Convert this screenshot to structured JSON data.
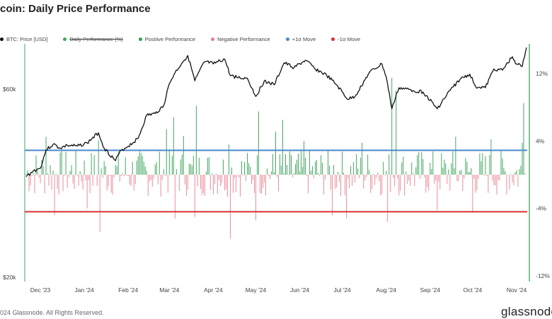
{
  "header": {
    "title": "coin: Daily Price Performance"
  },
  "legend": [
    {
      "label": "BTC: Price [USD]",
      "color": "#111111",
      "strike": false
    },
    {
      "label": "Daily Performance (%)",
      "color": "#3aa860",
      "strike": true
    },
    {
      "label": "Positive Performance",
      "color": "#2f9e4f",
      "strike": false
    },
    {
      "label": "Negative Performance",
      "color": "#e8808e",
      "strike": false
    },
    {
      "label": "+1σ Move",
      "color": "#4a87d0",
      "strike": false
    },
    {
      "label": "-1σ Move",
      "color": "#d93030",
      "strike": false
    }
  ],
  "footer": {
    "copyright": "024 Glassnode. All Rights Reserved.",
    "brand": "glassnode"
  },
  "colors": {
    "price": "#111111",
    "positive": "#2f9e4f",
    "negative": "#e8808e",
    "plus_sigma": "#4a87d0",
    "minus_sigma": "#d93030",
    "left_axis_line": "#3aa860",
    "right_axis_line": "#2f9e4f"
  },
  "chart_data": {
    "type": "line",
    "title": "coin: Daily Price Performance",
    "x_tick_labels": [
      "Dec '23",
      "Jan '24",
      "Feb '24",
      "Mar '24",
      "Apr '24",
      "May '24",
      "Jun '24",
      "Jul '24",
      "Aug '24",
      "Sep '24",
      "Oct '24",
      "Nov '24"
    ],
    "left_axis": {
      "scale": "log",
      "ticks": [
        {
          "label": "$60k",
          "value": 60000
        },
        {
          "label": "$20k",
          "value": 20000
        }
      ]
    },
    "right_axis": {
      "ticks": [
        {
          "label": "12%",
          "value": 12
        },
        {
          "label": "4%",
          "value": 4
        },
        {
          "label": "-4%",
          "value": -4
        },
        {
          "label": "-12%",
          "value": -12
        }
      ]
    },
    "sigma": {
      "plus": 2.9,
      "minus": -4.4
    },
    "price_series": {
      "name": "BTC: Price [USD]",
      "points": [
        [
          "2023-11-21",
          36000
        ],
        [
          "2023-11-26",
          37200
        ],
        [
          "2023-12-01",
          37800
        ],
        [
          "2023-12-05",
          42000
        ],
        [
          "2023-12-10",
          43500
        ],
        [
          "2023-12-15",
          42500
        ],
        [
          "2023-12-20",
          43200
        ],
        [
          "2023-12-27",
          43000
        ],
        [
          "2024-01-03",
          43800
        ],
        [
          "2024-01-11",
          46500
        ],
        [
          "2024-01-15",
          42500
        ],
        [
          "2024-01-23",
          39500
        ],
        [
          "2024-01-27",
          42000
        ],
        [
          "2024-02-01",
          43000
        ],
        [
          "2024-02-08",
          45000
        ],
        [
          "2024-02-14",
          51500
        ],
        [
          "2024-02-20",
          52000
        ],
        [
          "2024-02-26",
          54500
        ],
        [
          "2024-03-01",
          62000
        ],
        [
          "2024-03-05",
          66000
        ],
        [
          "2024-03-10",
          70000
        ],
        [
          "2024-03-14",
          73000
        ],
        [
          "2024-03-19",
          63000
        ],
        [
          "2024-03-26",
          70500
        ],
        [
          "2024-04-01",
          69500
        ],
        [
          "2024-04-09",
          71500
        ],
        [
          "2024-04-13",
          65000
        ],
        [
          "2024-04-20",
          64000
        ],
        [
          "2024-04-25",
          64000
        ],
        [
          "2024-05-01",
          57500
        ],
        [
          "2024-05-07",
          63000
        ],
        [
          "2024-05-14",
          61500
        ],
        [
          "2024-05-21",
          70000
        ],
        [
          "2024-05-28",
          68000
        ],
        [
          "2024-06-05",
          71000
        ],
        [
          "2024-06-12",
          67500
        ],
        [
          "2024-06-20",
          65000
        ],
        [
          "2024-06-27",
          61500
        ],
        [
          "2024-07-05",
          56500
        ],
        [
          "2024-07-10",
          57500
        ],
        [
          "2024-07-20",
          66000
        ],
        [
          "2024-07-29",
          69500
        ],
        [
          "2024-08-01",
          64500
        ],
        [
          "2024-08-05",
          53500
        ],
        [
          "2024-08-10",
          60500
        ],
        [
          "2024-08-20",
          59500
        ],
        [
          "2024-08-27",
          59000
        ],
        [
          "2024-09-06",
          53500
        ],
        [
          "2024-09-15",
          59500
        ],
        [
          "2024-09-22",
          63500
        ],
        [
          "2024-09-29",
          65500
        ],
        [
          "2024-10-03",
          61000
        ],
        [
          "2024-10-10",
          60500
        ],
        [
          "2024-10-16",
          67500
        ],
        [
          "2024-10-22",
          67000
        ],
        [
          "2024-10-29",
          72500
        ],
        [
          "2024-11-01",
          69500
        ],
        [
          "2024-11-05",
          68500
        ],
        [
          "2024-11-08",
          76500
        ]
      ]
    },
    "daily_performance": {
      "positive": [
        [
          "2023-12-05",
          4.5
        ],
        [
          "2024-01-11",
          4.1
        ],
        [
          "2024-02-28",
          5.4
        ],
        [
          "2024-03-04",
          6.8
        ],
        [
          "2024-03-11",
          4.6
        ],
        [
          "2024-03-20",
          8.2
        ],
        [
          "2024-04-12",
          3.6
        ],
        [
          "2024-05-03",
          7.5
        ],
        [
          "2024-05-15",
          5.1
        ],
        [
          "2024-05-20",
          6.5
        ],
        [
          "2024-06-04",
          4.0
        ],
        [
          "2024-07-15",
          3.8
        ],
        [
          "2024-08-05",
          11.5
        ],
        [
          "2024-08-08",
          10.0
        ],
        [
          "2024-09-19",
          4.5
        ],
        [
          "2024-10-14",
          4.2
        ],
        [
          "2024-11-05",
          3.8
        ],
        [
          "2024-11-06",
          8.5
        ]
      ],
      "negative": [
        [
          "2023-12-11",
          -4.8
        ],
        [
          "2024-01-03",
          -4.0
        ],
        [
          "2024-01-12",
          -6.8
        ],
        [
          "2024-03-05",
          -5.2
        ],
        [
          "2024-03-19",
          -5.0
        ],
        [
          "2024-04-13",
          -7.6
        ],
        [
          "2024-05-01",
          -5.4
        ],
        [
          "2024-06-24",
          -4.8
        ],
        [
          "2024-07-04",
          -5.2
        ],
        [
          "2024-08-02",
          -5.6
        ],
        [
          "2024-08-05",
          -6.3
        ],
        [
          "2024-09-06",
          -4.2
        ],
        [
          "2024-10-01",
          -4.5
        ]
      ]
    }
  }
}
